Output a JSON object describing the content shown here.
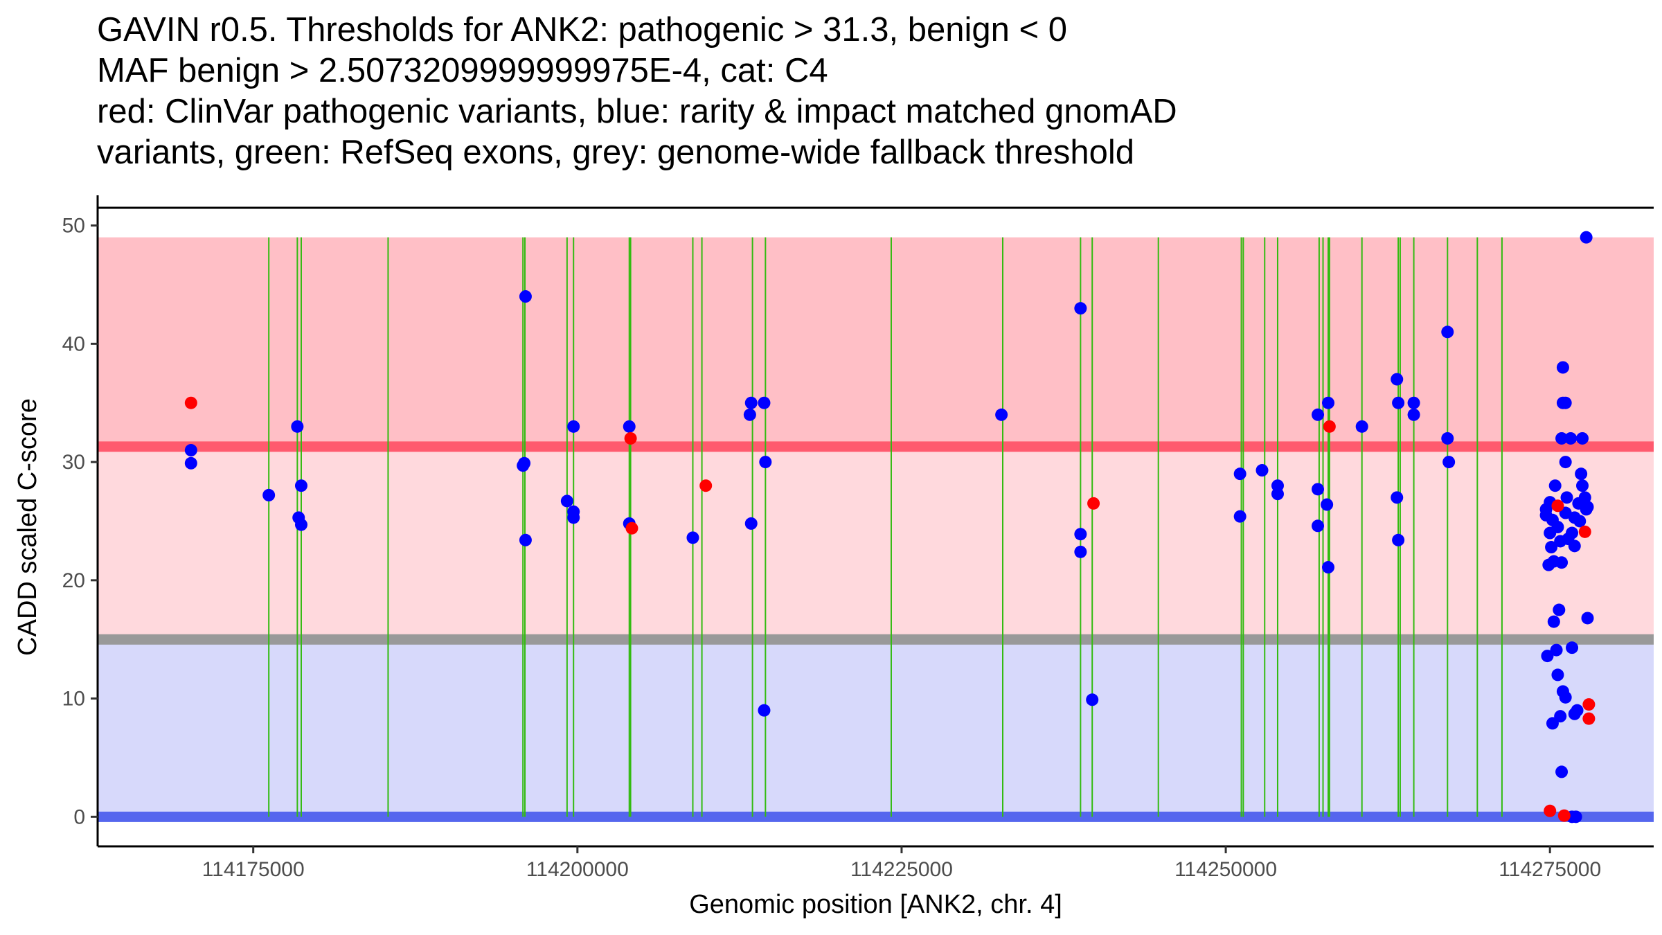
{
  "title_lines": [
    "GAVIN r0.5. Thresholds for ANK2: pathogenic > 31.3, benign < 0",
    "MAF benign > 2.5073209999999975E-4, cat: C4",
    "red: ClinVar pathogenic variants, blue: rarity & impact matched gnomAD",
    "variants, green: RefSeq exons, grey: genome-wide fallback threshold"
  ],
  "chart_data": {
    "type": "scatter",
    "title": "GAVIN r0.5. Thresholds for ANK2: pathogenic > 31.3, benign < 0",
    "xlabel": "Genomic position [ANK2, chr. 4]",
    "ylabel": "CADD scaled C-score",
    "xlim": [
      114163000,
      114283000
    ],
    "ylim": [
      -2.5,
      51.5
    ],
    "x_ticks": [
      114175000,
      114200000,
      114225000,
      114250000,
      114275000
    ],
    "x_tick_labels": [
      "114175000",
      "114200000",
      "114225000",
      "114250000",
      "114275000"
    ],
    "y_ticks": [
      0,
      10,
      20,
      30,
      40,
      50
    ],
    "y_tick_labels": [
      "0",
      "10",
      "20",
      "30",
      "40",
      "50"
    ],
    "bands": [
      {
        "name": "pathogenic-strong",
        "ymin": 31.3,
        "ymax": 49,
        "color": "#ffbfc6"
      },
      {
        "name": "pathogenic-weak",
        "ymin": 15,
        "ymax": 31.3,
        "color": "#ffd9dd"
      },
      {
        "name": "benign-region",
        "ymin": 0,
        "ymax": 15,
        "color": "#d7d9fb"
      }
    ],
    "threshold_lines": [
      {
        "name": "pathogenic-threshold",
        "y": 31.3,
        "color": "#ff5a6e"
      },
      {
        "name": "genome-wide-fallback",
        "y": 15,
        "color": "#999999"
      },
      {
        "name": "benign-threshold",
        "y": 0,
        "color": "#5566ee"
      }
    ],
    "exon_color": "#33bb11",
    "exons": [
      114176200,
      114178400,
      114178700,
      114185400,
      114195800,
      114195950,
      114199200,
      114199700,
      114204000,
      114204100,
      114208900,
      114209600,
      114213500,
      114214500,
      114224200,
      114232800,
      114238800,
      114239700,
      114244800,
      114251200,
      114251350,
      114253000,
      114254000,
      114257200,
      114257500,
      114257900,
      114258000,
      114260500,
      114263300,
      114263450,
      114264500,
      114267100,
      114269400,
      114271300
    ],
    "series": [
      {
        "name": "ClinVar pathogenic variants",
        "color": "#ff0000",
        "points": [
          [
            114170200,
            35
          ],
          [
            114204100,
            32
          ],
          [
            114204200,
            24.4
          ],
          [
            114209900,
            28
          ],
          [
            114239800,
            26.5
          ],
          [
            114258000,
            33
          ],
          [
            114275600,
            26.3
          ],
          [
            114275000,
            0.5
          ],
          [
            114276100,
            0.1
          ],
          [
            114277700,
            24.1
          ],
          [
            114278000,
            9.5
          ],
          [
            114278000,
            8.3
          ]
        ]
      },
      {
        "name": "rarity & impact matched gnomAD variants",
        "color": "#0000ff",
        "points": [
          [
            114170200,
            31
          ],
          [
            114170200,
            29.9
          ],
          [
            114176200,
            27.2
          ],
          [
            114178400,
            33
          ],
          [
            114178500,
            25.3
          ],
          [
            114178700,
            24.7
          ],
          [
            114178700,
            28
          ],
          [
            114195800,
            29.7
          ],
          [
            114195900,
            29.9
          ],
          [
            114196000,
            44
          ],
          [
            114196000,
            23.4
          ],
          [
            114199200,
            26.7
          ],
          [
            114199700,
            33
          ],
          [
            114199700,
            25.8
          ],
          [
            114199700,
            25.3
          ],
          [
            114204000,
            33
          ],
          [
            114204000,
            24.8
          ],
          [
            114208900,
            23.6
          ],
          [
            114213400,
            35
          ],
          [
            114213300,
            34
          ],
          [
            114213400,
            24.8
          ],
          [
            114214400,
            35
          ],
          [
            114214500,
            30
          ],
          [
            114214400,
            9
          ],
          [
            114232700,
            34
          ],
          [
            114238800,
            43
          ],
          [
            114238800,
            23.9
          ],
          [
            114238800,
            22.4
          ],
          [
            114239700,
            9.9
          ],
          [
            114251100,
            29
          ],
          [
            114251100,
            25.4
          ],
          [
            114252800,
            29.3
          ],
          [
            114254000,
            28
          ],
          [
            114254000,
            27.3
          ],
          [
            114257100,
            34
          ],
          [
            114257100,
            27.7
          ],
          [
            114257100,
            24.6
          ],
          [
            114257900,
            35
          ],
          [
            114257800,
            26.4
          ],
          [
            114257900,
            21.1
          ],
          [
            114260500,
            33
          ],
          [
            114263200,
            37
          ],
          [
            114263300,
            35
          ],
          [
            114263200,
            27
          ],
          [
            114263300,
            23.4
          ],
          [
            114264500,
            35
          ],
          [
            114264500,
            34
          ],
          [
            114267100,
            41
          ],
          [
            114267100,
            32
          ],
          [
            114267200,
            30
          ],
          [
            114277800,
            49
          ],
          [
            114276000,
            38
          ],
          [
            114276000,
            35
          ],
          [
            114276200,
            35
          ],
          [
            114275900,
            32
          ],
          [
            114276600,
            32
          ],
          [
            114277500,
            32
          ],
          [
            114276200,
            30
          ],
          [
            114277400,
            29
          ],
          [
            114277500,
            28
          ],
          [
            114275400,
            28
          ],
          [
            114277700,
            27
          ],
          [
            114276300,
            27
          ],
          [
            114277200,
            26.5
          ],
          [
            114275000,
            26.6
          ],
          [
            114277900,
            26.2
          ],
          [
            114274700,
            26
          ],
          [
            114277800,
            26
          ],
          [
            114276200,
            25.7
          ],
          [
            114274700,
            25.5
          ],
          [
            114276900,
            25.3
          ],
          [
            114275200,
            25.1
          ],
          [
            114277300,
            25
          ],
          [
            114275600,
            24.5
          ],
          [
            114275000,
            24
          ],
          [
            114276700,
            24
          ],
          [
            114276400,
            23.5
          ],
          [
            114275800,
            23.3
          ],
          [
            114276900,
            22.9
          ],
          [
            114275100,
            22.8
          ],
          [
            114275900,
            21.5
          ],
          [
            114275300,
            21.6
          ],
          [
            114274900,
            21.3
          ],
          [
            114275700,
            17.5
          ],
          [
            114277900,
            16.8
          ],
          [
            114275300,
            16.5
          ],
          [
            114276700,
            14.3
          ],
          [
            114275500,
            14.1
          ],
          [
            114274800,
            13.6
          ],
          [
            114275600,
            12
          ],
          [
            114276000,
            10.6
          ],
          [
            114276200,
            10.1
          ],
          [
            114277100,
            9
          ],
          [
            114276900,
            8.7
          ],
          [
            114275800,
            8.5
          ],
          [
            114275200,
            7.9
          ],
          [
            114275900,
            3.8
          ],
          [
            114276700,
            0
          ],
          [
            114277000,
            0
          ]
        ]
      }
    ]
  }
}
